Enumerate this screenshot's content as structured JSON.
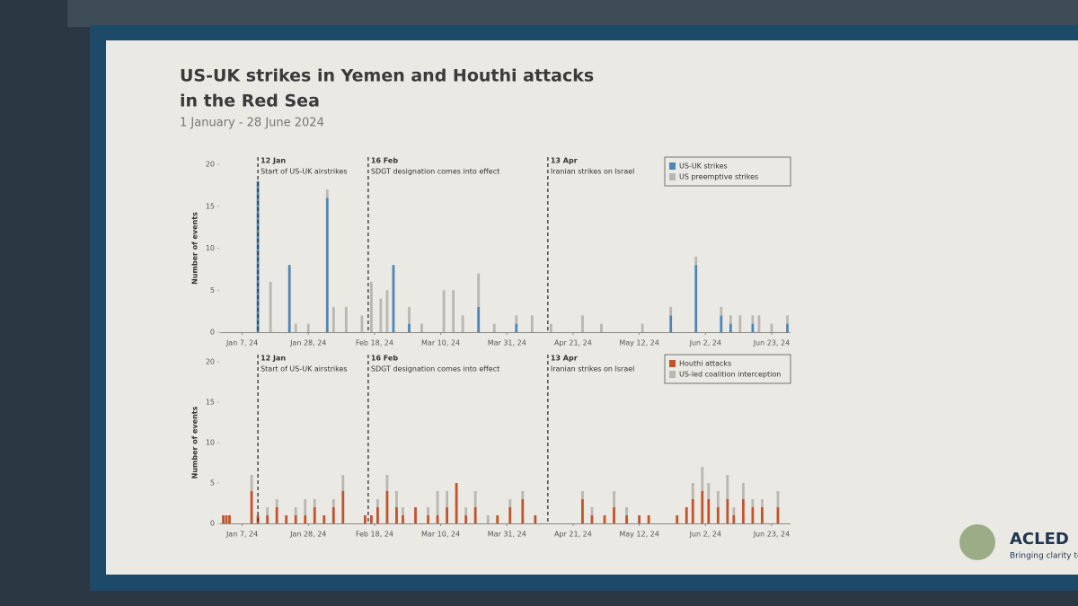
{
  "title": "US-UK strikes in Yemen and Houthi attacks",
  "title_line2": "in the Red Sea",
  "subtitle": "1 January - 28 June 2024",
  "logo": {
    "name": "ACLED",
    "tagline": "Bringing clarity to c"
  },
  "chart_data": [
    {
      "type": "stacked-bar",
      "ylabel": "Number of events",
      "ylim": [
        0,
        20
      ],
      "yticks": [
        0,
        5,
        10,
        15,
        20
      ],
      "xlim": [
        "Jan 1, 24",
        "Jun 28, 24"
      ],
      "xticks": [
        "Jan 7, 24",
        "Jan 28, 24",
        "Feb 18, 24",
        "Mar 10, 24",
        "Mar 31, 24",
        "Apr 21, 24",
        "May 12, 24",
        "Jun 2, 24",
        "Jun 23, 24"
      ],
      "legend": "upper right",
      "annotations": [
        {
          "label": "12 Jan",
          "text": "Start of US-UK airstrikes"
        },
        {
          "label": "16 Feb",
          "text": "SDGT designation comes into effect"
        },
        {
          "label": "13 Apr",
          "text": "Iranian strikes on Israel"
        }
      ],
      "x": [
        "Jan 12, 24",
        "Jan 16, 24",
        "Jan 22, 24",
        "Jan 24, 24",
        "Jan 28, 24",
        "Feb 3, 24",
        "Feb 5, 24",
        "Feb 9, 24",
        "Feb 14, 24",
        "Feb 17, 24",
        "Feb 20, 24",
        "Feb 22, 24",
        "Feb 24, 24",
        "Feb 29, 24",
        "Mar 4, 24",
        "Mar 11, 24",
        "Mar 14, 24",
        "Mar 17, 24",
        "Mar 22, 24",
        "Mar 27, 24",
        "Apr 3, 24",
        "Apr 8, 24",
        "Apr 14, 24",
        "Apr 24, 24",
        "Apr 30, 24",
        "May 13, 24",
        "May 22, 24",
        "May 30, 24",
        "Jun 7, 24",
        "Jun 10, 24",
        "Jun 13, 24",
        "Jun 17, 24",
        "Jun 19, 24",
        "Jun 23, 24",
        "Jun 28, 24"
      ],
      "series": [
        {
          "name": "US-UK strikes",
          "color": "#4f86b6",
          "values": [
            18,
            0,
            8,
            0,
            0,
            16,
            0,
            0,
            0,
            0,
            0,
            0,
            8,
            1,
            0,
            0,
            0,
            0,
            3,
            0,
            1,
            0,
            0,
            0,
            0,
            0,
            2,
            8,
            2,
            1,
            0,
            1,
            0,
            0,
            1
          ]
        },
        {
          "name": "US preemptive strikes",
          "color": "#b9b7b3",
          "values": [
            0,
            6,
            0,
            1,
            1,
            1,
            3,
            3,
            2,
            6,
            4,
            5,
            0,
            2,
            1,
            5,
            5,
            2,
            4,
            1,
            1,
            2,
            1,
            2,
            1,
            1,
            1,
            1,
            1,
            1,
            2,
            1,
            2,
            1,
            1
          ]
        }
      ]
    },
    {
      "type": "stacked-bar",
      "ylabel": "Number of events",
      "ylim": [
        0,
        20
      ],
      "yticks": [
        0,
        5,
        10,
        15,
        20
      ],
      "xlim": [
        "Jan 1, 24",
        "Jun 28, 24"
      ],
      "xticks": [
        "Jan 7, 24",
        "Jan 28, 24",
        "Feb 18, 24",
        "Mar 10, 24",
        "Mar 31, 24",
        "Apr 21, 24",
        "May 12, 24",
        "Jun 2, 24",
        "Jun 23, 24"
      ],
      "legend": "upper right",
      "annotations": [
        {
          "label": "12 Jan",
          "text": "Start of US-UK airstrikes"
        },
        {
          "label": "16 Feb",
          "text": "SDGT designation comes into effect"
        },
        {
          "label": "13 Apr",
          "text": "Iranian strikes on Israel"
        }
      ],
      "x": [
        "Jan 1, 24",
        "Jan 2, 24",
        "Jan 3, 24",
        "Jan 10, 24",
        "Jan 12, 24",
        "Jan 15, 24",
        "Jan 18, 24",
        "Jan 21, 24",
        "Jan 24, 24",
        "Jan 27, 24",
        "Jan 30, 24",
        "Feb 2, 24",
        "Feb 5, 24",
        "Feb 8, 24",
        "Feb 15, 24",
        "Feb 17, 24",
        "Feb 19, 24",
        "Feb 22, 24",
        "Feb 25, 24",
        "Feb 27, 24",
        "Mar 2, 24",
        "Mar 6, 24",
        "Mar 9, 24",
        "Mar 12, 24",
        "Mar 15, 24",
        "Mar 18, 24",
        "Mar 21, 24",
        "Mar 25, 24",
        "Mar 28, 24",
        "Apr 1, 24",
        "Apr 5, 24",
        "Apr 9, 24",
        "Apr 24, 24",
        "Apr 27, 24",
        "May 1, 24",
        "May 4, 24",
        "May 8, 24",
        "May 12, 24",
        "May 15, 24",
        "May 24, 24",
        "May 27, 24",
        "May 29, 24",
        "Jun 1, 24",
        "Jun 3, 24",
        "Jun 6, 24",
        "Jun 9, 24",
        "Jun 11, 24",
        "Jun 14, 24",
        "Jun 17, 24",
        "Jun 20, 24",
        "Jun 25, 24"
      ],
      "series": [
        {
          "name": "Houthi attacks",
          "color": "#c2532b",
          "values": [
            1,
            1,
            1,
            4,
            1,
            1,
            2,
            1,
            1,
            1,
            2,
            1,
            2,
            4,
            1,
            1,
            2,
            4,
            2,
            1,
            2,
            1,
            1,
            2,
            5,
            1,
            2,
            0,
            1,
            2,
            3,
            1,
            3,
            1,
            1,
            2,
            1,
            1,
            1,
            1,
            2,
            3,
            4,
            3,
            2,
            3,
            1,
            3,
            2,
            2,
            2
          ]
        },
        {
          "name": "US-led coalition interception",
          "color": "#b9b7b3",
          "values": [
            0,
            0,
            0,
            2,
            0,
            1,
            1,
            0,
            1,
            2,
            1,
            0,
            1,
            2,
            0,
            0,
            1,
            2,
            2,
            1,
            0,
            1,
            3,
            2,
            0,
            1,
            2,
            1,
            0,
            1,
            1,
            0,
            1,
            1,
            0,
            2,
            1,
            0,
            0,
            0,
            0,
            2,
            3,
            2,
            2,
            3,
            1,
            2,
            1,
            1,
            2
          ]
        }
      ]
    }
  ]
}
